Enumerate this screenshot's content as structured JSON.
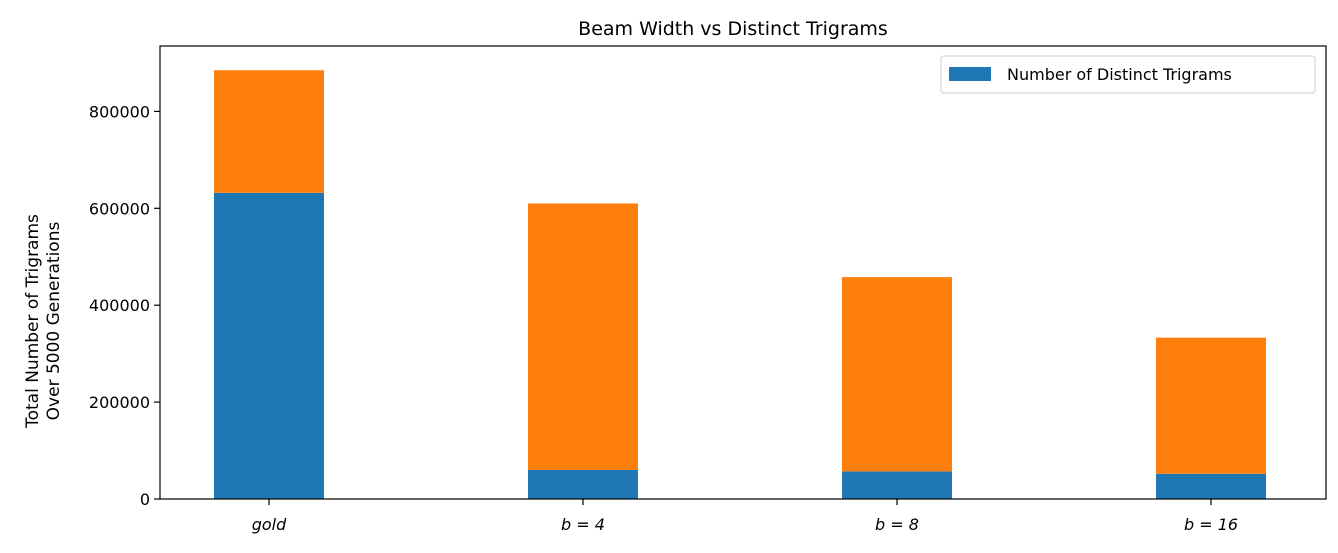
{
  "chart_data": {
    "type": "bar",
    "stacked": true,
    "title": "Beam Width vs Distinct Trigrams",
    "xlabel": "",
    "ylabel_lines": [
      "Total Number of Trigrams",
      "Over 5000 Generations"
    ],
    "categories": [
      "gold",
      "b = 4",
      "b = 8",
      "b = 16"
    ],
    "series": [
      {
        "name": "Number of Distinct Trigrams",
        "values": [
          632000,
          60000,
          57000,
          52000
        ],
        "color": "#1f77b4",
        "in_legend": true
      },
      {
        "name": "",
        "values": [
          253000,
          550000,
          401000,
          281000
        ],
        "color": "#ff7f0e",
        "in_legend": false
      }
    ],
    "ylim": [
      0,
      935000
    ],
    "yticks": [
      0,
      200000,
      400000,
      600000,
      800000
    ],
    "legend_position": "top-right",
    "grid": false
  }
}
